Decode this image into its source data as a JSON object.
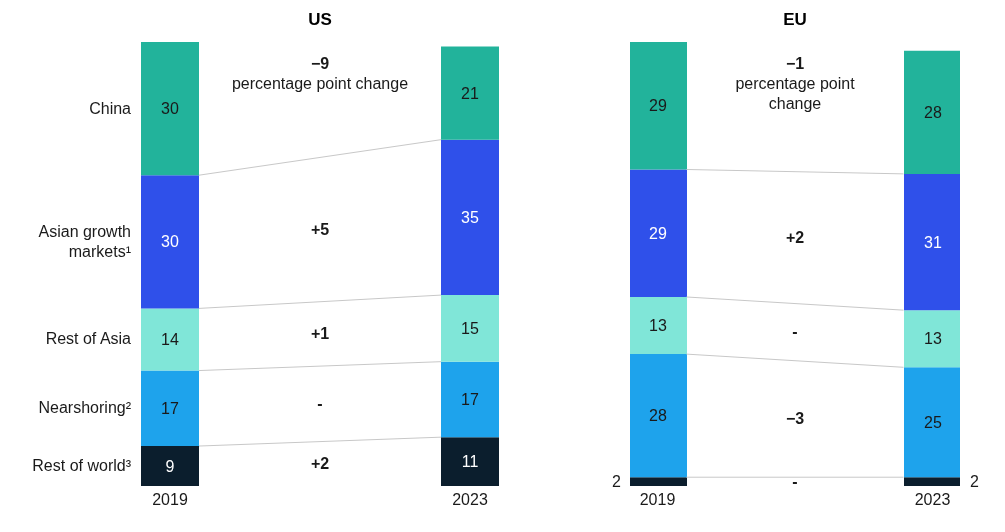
{
  "chart_data": [
    {
      "type": "bar",
      "title": "US",
      "categories": [
        "2019",
        "2023"
      ],
      "stacked": true,
      "data_labels": true,
      "series": [
        {
          "name": "Rest of world³",
          "color": "#0b1e2d",
          "values": [
            9,
            11
          ]
        },
        {
          "name": "Nearshoring²",
          "color": "#1ea3ec",
          "values": [
            17,
            17
          ]
        },
        {
          "name": "Rest of Asia",
          "color": "#80e6d8",
          "values": [
            14,
            15
          ]
        },
        {
          "name": "Asian growth markets¹",
          "color": "#2f50ea",
          "values": [
            30,
            35
          ]
        },
        {
          "name": "China",
          "color": "#22b39b",
          "values": [
            30,
            21
          ]
        }
      ],
      "annotations": [
        "−9\npercentage point change",
        "+5",
        "+1",
        "-",
        "+2"
      ]
    },
    {
      "type": "bar",
      "title": "EU",
      "categories": [
        "2019",
        "2023"
      ],
      "stacked": true,
      "data_labels": true,
      "series": [
        {
          "color": "#0b1e2d",
          "values": [
            2,
            2
          ]
        },
        {
          "color": "#1ea3ec",
          "values": [
            28,
            25
          ]
        },
        {
          "color": "#80e6d8",
          "values": [
            13,
            13
          ]
        },
        {
          "color": "#2f50ea",
          "values": [
            29,
            31
          ]
        },
        {
          "color": "#22b39b",
          "values": [
            29,
            28
          ]
        }
      ],
      "annotations": [
        "−1\npercentage point change",
        "+2",
        "-",
        "−3",
        "-"
      ]
    }
  ]
}
